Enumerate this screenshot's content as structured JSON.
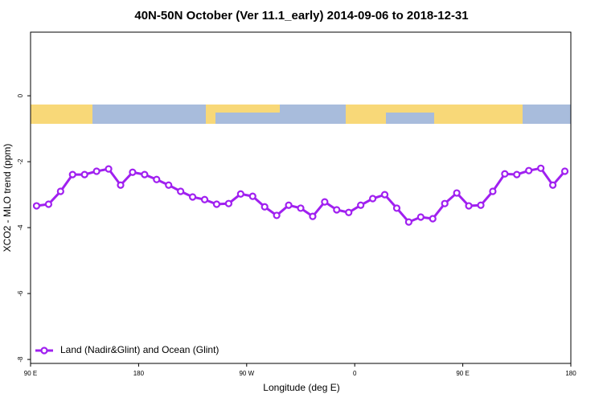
{
  "chart_data": {
    "type": "line",
    "title": "40N-50N October (Ver 11.1_early)   2014-09-06 to 2018-12-31",
    "x_label": "Longitude (deg E)",
    "y_label": "XCO2 - MLO trend (ppm)",
    "x": [
      95,
      105,
      115,
      125,
      135,
      145,
      155,
      165,
      175,
      185,
      195,
      205,
      215,
      225,
      235,
      245,
      255,
      265,
      275,
      285,
      295,
      305,
      315,
      325,
      335,
      345,
      355,
      365,
      375,
      385,
      395,
      405,
      415,
      425,
      435,
      445,
      455,
      465,
      475,
      485,
      495,
      505,
      515,
      525,
      535
    ],
    "series": [
      {
        "name": "Land (Nadir&Glint) and Ocean (Glint)",
        "color": "#a020f0",
        "values": [
          -3.34,
          -3.29,
          -2.9,
          -2.39,
          -2.39,
          -2.29,
          -2.22,
          -2.71,
          -2.32,
          -2.39,
          -2.54,
          -2.71,
          -2.9,
          -3.07,
          -3.15,
          -3.29,
          -3.27,
          -2.98,
          -3.05,
          -3.37,
          -3.63,
          -3.32,
          -3.41,
          -3.66,
          -3.22,
          -3.46,
          -3.54,
          -3.32,
          -3.12,
          -3.0,
          -3.41,
          -3.83,
          -3.68,
          -3.73,
          -3.27,
          -2.95,
          -3.34,
          -3.32,
          -2.9,
          -2.37,
          -2.39,
          -2.27,
          -2.2,
          -2.71,
          -2.29
        ]
      }
    ],
    "xlim": [
      90,
      540
    ],
    "xticks": [
      {
        "value": 90,
        "label": "90 E"
      },
      180,
      {
        "value": 270,
        "label": "90 W"
      },
      {
        "value": 360,
        "label": "0"
      },
      {
        "value": 450,
        "label": "90 E"
      },
      {
        "value": 540,
        "label": "180"
      }
    ],
    "ylim": [
      -8.12,
      1.93
    ],
    "yticks": [
      0,
      -2,
      -4,
      -6,
      -8
    ],
    "legend": "bottom-left"
  }
}
